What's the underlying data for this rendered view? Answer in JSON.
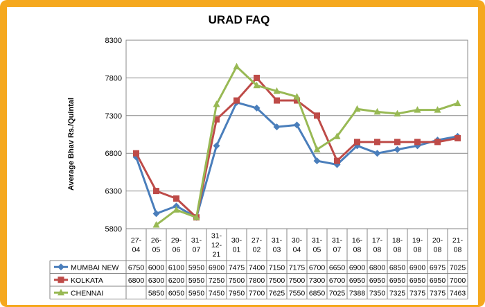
{
  "chart_data": {
    "type": "line",
    "title": "URAD FAQ",
    "ylabel": "Average Bhav Rs./Quintal",
    "xlabel": "",
    "ylim": [
      5800,
      8300
    ],
    "yticks": [
      5800,
      6300,
      6800,
      7300,
      7800,
      8300
    ],
    "grid": true,
    "legend_position": "table-below",
    "categories": [
      [
        "27-",
        "04"
      ],
      [
        "26-",
        "05"
      ],
      [
        "29-",
        "06"
      ],
      [
        "31-",
        "07"
      ],
      [
        "31-",
        "12-",
        "21"
      ],
      [
        "30-",
        "01"
      ],
      [
        "27-",
        "02"
      ],
      [
        "31-",
        "03"
      ],
      [
        "30-",
        "04"
      ],
      [
        "31-",
        "05"
      ],
      [
        "31-",
        "07"
      ],
      [
        "16-",
        "08"
      ],
      [
        "17-",
        "08"
      ],
      [
        "18-",
        "08"
      ],
      [
        "19-",
        "08"
      ],
      [
        "20-",
        "08"
      ],
      [
        "21-",
        "08"
      ]
    ],
    "series": [
      {
        "name": "MUMBAI NEW",
        "color": "#4a7ebb",
        "marker": "diamond",
        "values": [
          6750,
          6000,
          6100,
          5950,
          6900,
          7475,
          7400,
          7150,
          7175,
          6700,
          6650,
          6900,
          6800,
          6850,
          6900,
          6975,
          7025
        ],
        "labels": [
          "6750",
          "6000",
          "6100",
          "5950",
          "6900",
          "7475",
          "7400",
          "7150",
          "7175",
          "6700",
          "6650",
          "6900",
          "6800",
          "6850",
          "6900",
          "6975",
          "7025"
        ]
      },
      {
        "name": "KOLKATA",
        "color": "#be4b48",
        "marker": "square",
        "values": [
          6800,
          6300,
          6200,
          5950,
          7250,
          7500,
          7800,
          7500,
          7500,
          7300,
          6700,
          6950,
          6950,
          6950,
          6950,
          6950,
          7000
        ],
        "labels": [
          "6800",
          "6300",
          "6200",
          "5950",
          "7250",
          "7500",
          "7800",
          "7500",
          "7500",
          "7300",
          "6700",
          "6950",
          "6950",
          "6950",
          "6950",
          "6950",
          "7000"
        ]
      },
      {
        "name": "CHENNAI",
        "color": "#98b954",
        "marker": "triangle",
        "values": [
          null,
          5850,
          6050,
          5950,
          7450,
          7950,
          7700,
          7625,
          7550,
          6850,
          7025,
          7388,
          7350,
          7325,
          7375,
          7375,
          7463
        ],
        "labels": [
          "",
          "5850",
          "6050",
          "5950",
          "7450",
          "7950",
          "7700",
          "7625",
          "7550",
          "6850",
          "7025",
          "7388",
          "7350",
          "7325",
          "7375",
          "7375",
          "7463"
        ]
      }
    ]
  }
}
